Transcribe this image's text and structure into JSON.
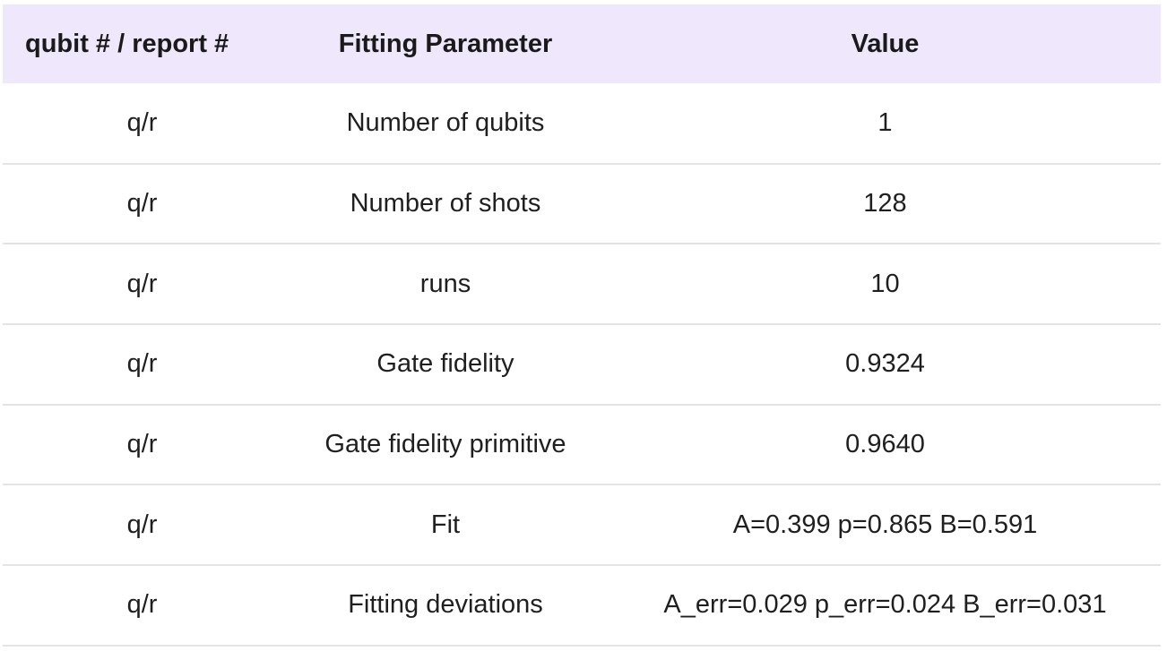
{
  "table": {
    "headers": [
      "qubit # / report #",
      "Fitting Parameter",
      "Value"
    ],
    "rows": [
      {
        "qubit": "q/r",
        "param": "Number of qubits",
        "value": "1"
      },
      {
        "qubit": "q/r",
        "param": "Number of shots",
        "value": "128"
      },
      {
        "qubit": "q/r",
        "param": "runs",
        "value": "10"
      },
      {
        "qubit": "q/r",
        "param": "Gate fidelity",
        "value": "0.9324"
      },
      {
        "qubit": "q/r",
        "param": "Gate fidelity primitive",
        "value": "0.9640"
      },
      {
        "qubit": "q/r",
        "param": "Fit",
        "value": "A=0.399 p=0.865 B=0.591"
      },
      {
        "qubit": "q/r",
        "param": "Fitting deviations",
        "value": "A_err=0.029 p_err=0.024 B_err=0.031"
      }
    ]
  },
  "colors": {
    "header_background": "#efe7fb",
    "row_divider": "#e4e4e4"
  }
}
